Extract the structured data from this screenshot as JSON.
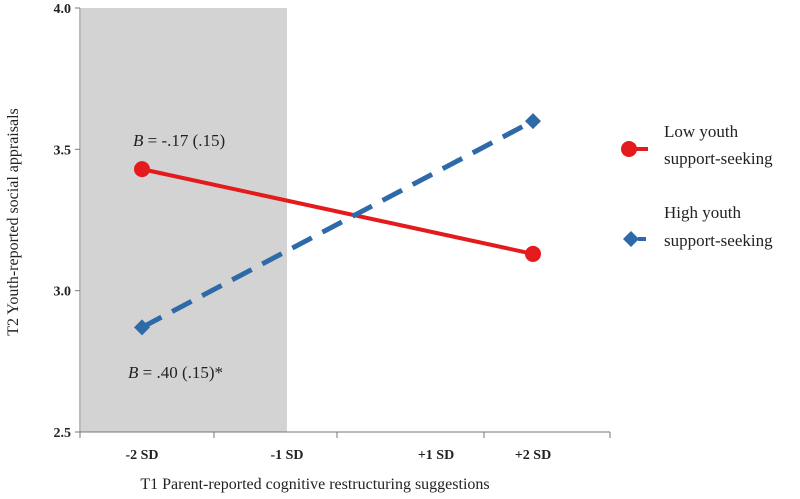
{
  "chart_data": {
    "type": "line",
    "title": "",
    "xlabel": "T1 Parent-reported cognitive restructuring suggestions",
    "ylabel": "T2 Youth-reported social appraisals",
    "categories": [
      "-2 SD",
      "-1 SD",
      "+1 SD",
      "+2 SD"
    ],
    "ylim": [
      2.5,
      4.0
    ],
    "yticks": [
      "2.5",
      "3.0",
      "3.5",
      "4.0"
    ],
    "grid": false,
    "legend_position": "right",
    "shaded_region": {
      "from_category": "-2 SD",
      "to_category": "-1 SD",
      "color": "#d3d3d3"
    },
    "series": [
      {
        "name_line1": "Low youth",
        "name_line2": "support-seeking",
        "color": "#e41a1c",
        "marker": "circle",
        "dash": "solid",
        "points": [
          {
            "x": "-2 SD",
            "y": 3.43
          },
          {
            "x": "+2 SD",
            "y": 3.13
          }
        ]
      },
      {
        "name_line1": "High youth",
        "name_line2": "support-seeking",
        "color": "#2e6aa8",
        "marker": "diamond",
        "dash": "dashed",
        "points": [
          {
            "x": "-2 SD",
            "y": 2.87
          },
          {
            "x": "+2 SD",
            "y": 3.6
          }
        ]
      }
    ],
    "annotations": [
      {
        "id": "low",
        "label": "B",
        "text": " = -.17 (.15)"
      },
      {
        "id": "high",
        "label": "B",
        "text": " = .40 (.15)*"
      }
    ]
  }
}
